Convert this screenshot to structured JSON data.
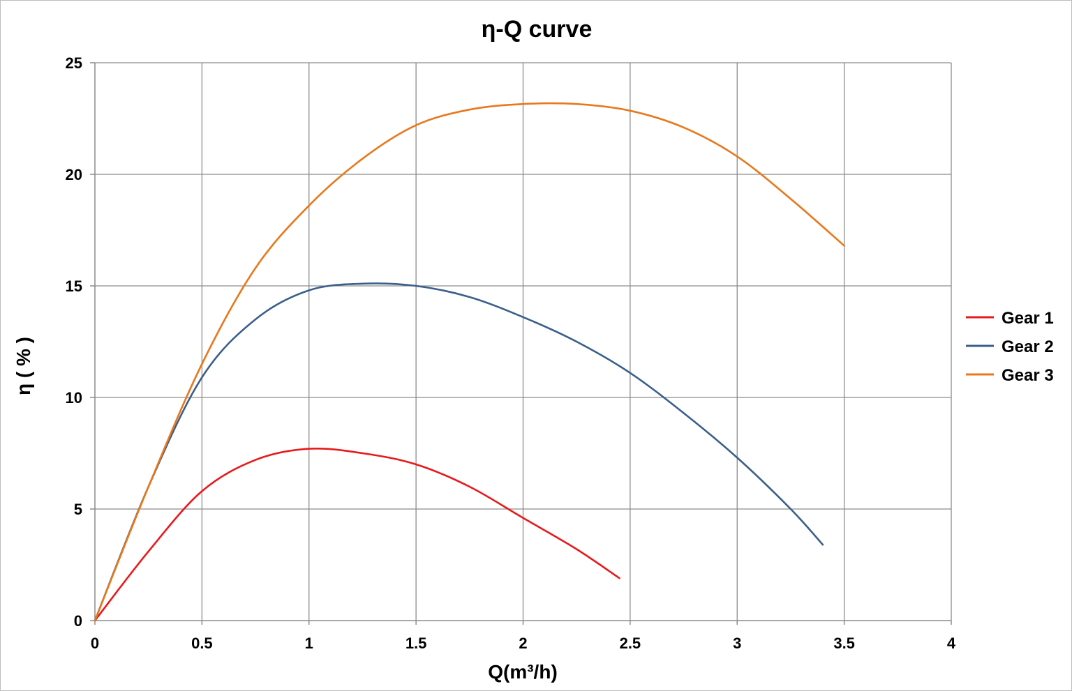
{
  "chart_data": {
    "type": "line",
    "title": "η-Q  curve",
    "xlabel": "Q(m³/h)",
    "ylabel": "η ( % )",
    "xlim": [
      0,
      4
    ],
    "ylim": [
      0,
      25
    ],
    "x_ticks": [
      "0",
      "0.5",
      "1",
      "1.5",
      "2",
      "2.5",
      "3",
      "3.5",
      "4"
    ],
    "y_ticks": [
      "0",
      "5",
      "10",
      "15",
      "20",
      "25"
    ],
    "grid": true,
    "legend_position": "right",
    "series": [
      {
        "name": "Gear 1",
        "color": "#e8191b",
        "points": [
          [
            0,
            0
          ],
          [
            0.25,
            3.1
          ],
          [
            0.5,
            5.8
          ],
          [
            0.75,
            7.2
          ],
          [
            1.0,
            7.7
          ],
          [
            1.25,
            7.5
          ],
          [
            1.5,
            7.0
          ],
          [
            1.75,
            6.0
          ],
          [
            2.0,
            4.6
          ],
          [
            2.25,
            3.2
          ],
          [
            2.45,
            1.9
          ]
        ]
      },
      {
        "name": "Gear 2",
        "color": "#3a5f8a",
        "points": [
          [
            0,
            0
          ],
          [
            0.25,
            6.0
          ],
          [
            0.5,
            10.9
          ],
          [
            0.75,
            13.5
          ],
          [
            1.0,
            14.8
          ],
          [
            1.25,
            15.1
          ],
          [
            1.5,
            15.0
          ],
          [
            1.75,
            14.5
          ],
          [
            2.0,
            13.6
          ],
          [
            2.25,
            12.5
          ],
          [
            2.5,
            11.1
          ],
          [
            2.75,
            9.3
          ],
          [
            3.0,
            7.3
          ],
          [
            3.25,
            5.0
          ],
          [
            3.4,
            3.4
          ]
        ]
      },
      {
        "name": "Gear 3",
        "color": "#e8781c",
        "points": [
          [
            0,
            0
          ],
          [
            0.25,
            6.0
          ],
          [
            0.5,
            11.5
          ],
          [
            0.75,
            15.8
          ],
          [
            1.0,
            18.6
          ],
          [
            1.25,
            20.7
          ],
          [
            1.5,
            22.2
          ],
          [
            1.75,
            22.9
          ],
          [
            2.0,
            23.15
          ],
          [
            2.25,
            23.15
          ],
          [
            2.5,
            22.85
          ],
          [
            2.75,
            22.1
          ],
          [
            3.0,
            20.8
          ],
          [
            3.25,
            18.9
          ],
          [
            3.5,
            16.8
          ]
        ]
      }
    ]
  }
}
